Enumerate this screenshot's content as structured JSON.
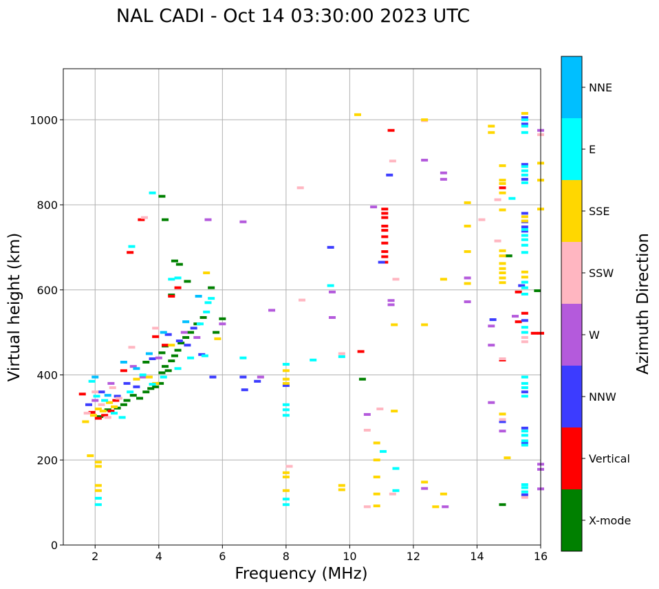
{
  "chart_data": {
    "type": "scatter",
    "title": "NAL CADI - Oct 14 03:30:00 2023 UTC",
    "xlabel": "Frequency (MHz)",
    "ylabel": "Virtual height (km)",
    "xlim": [
      1,
      16
    ],
    "ylim": [
      0,
      1120
    ],
    "xticks": [
      2,
      4,
      6,
      8,
      10,
      12,
      14,
      16
    ],
    "yticks": [
      0,
      200,
      400,
      600,
      800,
      1000
    ],
    "grid": true,
    "colorbar": {
      "label": "Azimuth Direction",
      "categories": [
        "X-mode",
        "Vertical",
        "NNW",
        "W",
        "SSW",
        "SSE",
        "E",
        "NNE"
      ],
      "colors": [
        "#008000",
        "#ff0000",
        "#3c3cff",
        "#b45adc",
        "#ffb6c1",
        "#ffd700",
        "#00ffff",
        "#00bfff"
      ]
    },
    "series": [
      {
        "name": "X-mode",
        "points": [
          [
            2.15,
            302
          ],
          [
            2.4,
            318
          ],
          [
            2.7,
            322
          ],
          [
            2.9,
            330
          ],
          [
            3.0,
            340
          ],
          [
            3.2,
            352
          ],
          [
            3.4,
            345
          ],
          [
            3.6,
            360
          ],
          [
            3.75,
            368
          ],
          [
            3.9,
            372
          ],
          [
            4.05,
            380
          ],
          [
            4.1,
            405
          ],
          [
            4.2,
            420
          ],
          [
            4.3,
            410
          ],
          [
            4.4,
            433
          ],
          [
            4.5,
            445
          ],
          [
            4.6,
            458
          ],
          [
            4.7,
            475
          ],
          [
            4.85,
            488
          ],
          [
            5.0,
            500
          ],
          [
            5.2,
            520
          ],
          [
            5.4,
            535
          ],
          [
            4.1,
            452
          ],
          [
            4.2,
            468
          ],
          [
            3.6,
            430
          ],
          [
            4.4,
            588
          ],
          [
            4.2,
            765
          ],
          [
            4.1,
            820
          ],
          [
            4.5,
            668
          ],
          [
            4.65,
            660
          ],
          [
            5.65,
            605
          ],
          [
            6.0,
            532
          ],
          [
            5.8,
            500
          ],
          [
            10.4,
            390
          ],
          [
            14.8,
            95
          ],
          [
            15.0,
            680
          ],
          [
            15.9,
            598
          ],
          [
            4.9,
            620
          ]
        ]
      },
      {
        "name": "Vertical",
        "points": [
          [
            1.6,
            355
          ],
          [
            1.9,
            312
          ],
          [
            2.1,
            298
          ],
          [
            2.3,
            305
          ],
          [
            2.5,
            315
          ],
          [
            2.65,
            340
          ],
          [
            2.9,
            410
          ],
          [
            3.1,
            688
          ],
          [
            3.45,
            765
          ],
          [
            3.9,
            490
          ],
          [
            4.2,
            470
          ],
          [
            4.4,
            585
          ],
          [
            4.6,
            605
          ],
          [
            10.35,
            455
          ],
          [
            11.1,
            790
          ],
          [
            11.1,
            780
          ],
          [
            11.1,
            770
          ],
          [
            11.1,
            750
          ],
          [
            11.1,
            740
          ],
          [
            11.1,
            725
          ],
          [
            11.1,
            710
          ],
          [
            11.1,
            690
          ],
          [
            11.1,
            678
          ],
          [
            11.1,
            665
          ],
          [
            11.3,
            975
          ],
          [
            14.8,
            840
          ],
          [
            14.8,
            435
          ],
          [
            15.3,
            525
          ],
          [
            15.5,
            545
          ],
          [
            15.8,
            498
          ],
          [
            16.0,
            498
          ],
          [
            15.3,
            595
          ]
        ]
      },
      {
        "name": "NNW",
        "points": [
          [
            1.8,
            330
          ],
          [
            2.2,
            360
          ],
          [
            2.7,
            350
          ],
          [
            3.0,
            380
          ],
          [
            3.3,
            372
          ],
          [
            3.8,
            438
          ],
          [
            4.3,
            495
          ],
          [
            4.65,
            480
          ],
          [
            4.9,
            470
          ],
          [
            5.1,
            510
          ],
          [
            5.35,
            448
          ],
          [
            5.7,
            395
          ],
          [
            6.65,
            395
          ],
          [
            6.7,
            365
          ],
          [
            7.1,
            385
          ],
          [
            8.0,
            375
          ],
          [
            9.4,
            700
          ],
          [
            11.0,
            665
          ],
          [
            11.25,
            870
          ],
          [
            14.5,
            530
          ],
          [
            14.8,
            290
          ],
          [
            15.5,
            1005
          ],
          [
            15.5,
            990
          ],
          [
            15.5,
            895
          ],
          [
            15.5,
            860
          ],
          [
            15.5,
            780
          ],
          [
            15.5,
            760
          ],
          [
            15.5,
            748
          ],
          [
            15.5,
            738
          ],
          [
            15.5,
            528
          ],
          [
            15.5,
            360
          ],
          [
            15.5,
            275
          ],
          [
            15.5,
            240
          ],
          [
            15.5,
            118
          ],
          [
            15.4,
            610
          ]
        ]
      },
      {
        "name": "W",
        "points": [
          [
            2.0,
            340
          ],
          [
            2.5,
            380
          ],
          [
            3.2,
            420
          ],
          [
            3.5,
            395
          ],
          [
            4.0,
            440
          ],
          [
            4.8,
            500
          ],
          [
            5.2,
            488
          ],
          [
            5.55,
            765
          ],
          [
            6.0,
            520
          ],
          [
            6.65,
            760
          ],
          [
            7.2,
            395
          ],
          [
            7.55,
            552
          ],
          [
            9.45,
            535
          ],
          [
            9.45,
            595
          ],
          [
            10.55,
            307
          ],
          [
            10.75,
            795
          ],
          [
            11.3,
            565
          ],
          [
            11.3,
            575
          ],
          [
            12.35,
            905
          ],
          [
            12.35,
            133
          ],
          [
            12.95,
            875
          ],
          [
            12.95,
            860
          ],
          [
            13.0,
            90
          ],
          [
            13.7,
            572
          ],
          [
            13.7,
            628
          ],
          [
            14.45,
            470
          ],
          [
            14.45,
            515
          ],
          [
            14.45,
            335
          ],
          [
            14.8,
            268
          ],
          [
            15.2,
            538
          ],
          [
            16.0,
            975
          ],
          [
            16.0,
            190
          ],
          [
            16.0,
            178
          ],
          [
            16.0,
            132
          ]
        ]
      },
      {
        "name": "SSW",
        "points": [
          [
            1.75,
            310
          ],
          [
            2.0,
            360
          ],
          [
            2.2,
            330
          ],
          [
            2.4,
            300
          ],
          [
            2.55,
            370
          ],
          [
            2.75,
            345
          ],
          [
            3.15,
            465
          ],
          [
            3.55,
            770
          ],
          [
            3.9,
            510
          ],
          [
            8.1,
            185
          ],
          [
            8.45,
            840
          ],
          [
            8.5,
            576
          ],
          [
            9.75,
            450
          ],
          [
            10.55,
            270
          ],
          [
            10.55,
            90
          ],
          [
            10.95,
            320
          ],
          [
            11.35,
            903
          ],
          [
            11.45,
            625
          ],
          [
            11.35,
            120
          ],
          [
            12.35,
            998
          ],
          [
            14.15,
            765
          ],
          [
            14.65,
            812
          ],
          [
            14.65,
            715
          ],
          [
            14.8,
            438
          ],
          [
            14.8,
            295
          ],
          [
            15.5,
            488
          ],
          [
            15.5,
            478
          ],
          [
            15.5,
            112
          ],
          [
            16.0,
            965
          ]
        ]
      },
      {
        "name": "SSE",
        "points": [
          [
            1.7,
            290
          ],
          [
            1.95,
            305
          ],
          [
            2.1,
            320
          ],
          [
            2.25,
            315
          ],
          [
            2.45,
            335
          ],
          [
            2.6,
            325
          ],
          [
            3.3,
            390
          ],
          [
            3.7,
            395
          ],
          [
            3.9,
            380
          ],
          [
            4.4,
            470
          ],
          [
            5.5,
            640
          ],
          [
            5.85,
            485
          ],
          [
            1.85,
            210
          ],
          [
            2.1,
            195
          ],
          [
            2.1,
            185
          ],
          [
            2.1,
            140
          ],
          [
            2.1,
            128
          ],
          [
            8.0,
            410
          ],
          [
            8.0,
            390
          ],
          [
            8.0,
            380
          ],
          [
            8.0,
            170
          ],
          [
            8.0,
            160
          ],
          [
            8.0,
            128
          ],
          [
            9.75,
            140
          ],
          [
            9.75,
            130
          ],
          [
            10.25,
            1012
          ],
          [
            10.85,
            240
          ],
          [
            10.85,
            200
          ],
          [
            10.85,
            160
          ],
          [
            10.85,
            120
          ],
          [
            10.85,
            92
          ],
          [
            11.4,
            518
          ],
          [
            11.4,
            315
          ],
          [
            12.35,
            1000
          ],
          [
            12.35,
            518
          ],
          [
            12.35,
            148
          ],
          [
            12.7,
            90
          ],
          [
            12.95,
            625
          ],
          [
            12.95,
            120
          ],
          [
            13.7,
            805
          ],
          [
            13.7,
            750
          ],
          [
            13.7,
            690
          ],
          [
            13.7,
            615
          ],
          [
            14.45,
            985
          ],
          [
            14.45,
            970
          ],
          [
            14.8,
            892
          ],
          [
            14.8,
            858
          ],
          [
            14.8,
            850
          ],
          [
            14.8,
            828
          ],
          [
            14.8,
            788
          ],
          [
            14.8,
            692
          ],
          [
            14.8,
            680
          ],
          [
            14.8,
            662
          ],
          [
            14.8,
            650
          ],
          [
            14.8,
            640
          ],
          [
            14.8,
            628
          ],
          [
            14.8,
            617
          ],
          [
            14.8,
            308
          ],
          [
            14.95,
            205
          ],
          [
            15.5,
            1015
          ],
          [
            15.5,
            772
          ],
          [
            15.5,
            762
          ],
          [
            15.5,
            642
          ],
          [
            15.5,
            630
          ],
          [
            16.0,
            898
          ],
          [
            16.0,
            858
          ],
          [
            16.0,
            790
          ]
        ]
      },
      {
        "name": "E",
        "points": [
          [
            1.9,
            385
          ],
          [
            2.05,
            350
          ],
          [
            2.3,
            340
          ],
          [
            2.6,
            310
          ],
          [
            2.85,
            300
          ],
          [
            3.1,
            360
          ],
          [
            3.5,
            400
          ],
          [
            3.8,
            378
          ],
          [
            4.15,
            395
          ],
          [
            4.6,
            415
          ],
          [
            5.0,
            440
          ],
          [
            5.3,
            520
          ],
          [
            5.55,
            570
          ],
          [
            5.65,
            580
          ],
          [
            5.5,
            548
          ],
          [
            3.15,
            702
          ],
          [
            3.8,
            828
          ],
          [
            4.4,
            625
          ],
          [
            4.6,
            628
          ],
          [
            5.45,
            445
          ],
          [
            6.65,
            440
          ],
          [
            8.0,
            425
          ],
          [
            8.0,
            330
          ],
          [
            8.0,
            318
          ],
          [
            8.0,
            305
          ],
          [
            8.0,
            108
          ],
          [
            8.0,
            95
          ],
          [
            8.85,
            435
          ],
          [
            9.4,
            610
          ],
          [
            9.75,
            443
          ],
          [
            11.05,
            220
          ],
          [
            11.45,
            180
          ],
          [
            11.45,
            128
          ],
          [
            2.1,
            110
          ],
          [
            2.1,
            95
          ],
          [
            15.1,
            815
          ],
          [
            15.5,
            1000
          ],
          [
            15.5,
            985
          ],
          [
            15.5,
            970
          ],
          [
            15.5,
            890
          ],
          [
            15.5,
            880
          ],
          [
            15.5,
            870
          ],
          [
            15.5,
            852
          ],
          [
            15.5,
            742
          ],
          [
            15.5,
            728
          ],
          [
            15.5,
            718
          ],
          [
            15.5,
            705
          ],
          [
            15.5,
            688
          ],
          [
            15.5,
            618
          ],
          [
            15.5,
            605
          ],
          [
            15.5,
            590
          ],
          [
            15.5,
            512
          ],
          [
            15.5,
            500
          ],
          [
            15.5,
            395
          ],
          [
            15.5,
            380
          ],
          [
            15.5,
            370
          ],
          [
            15.5,
            350
          ],
          [
            15.5,
            268
          ],
          [
            15.5,
            258
          ],
          [
            15.5,
            245
          ],
          [
            15.5,
            235
          ],
          [
            15.5,
            142
          ],
          [
            15.5,
            135
          ],
          [
            15.5,
            125
          ]
        ]
      },
      {
        "name": "NNE",
        "points": [
          [
            2.0,
            395
          ],
          [
            2.4,
            352
          ],
          [
            2.9,
            430
          ],
          [
            3.3,
            415
          ],
          [
            3.7,
            450
          ],
          [
            4.15,
            500
          ],
          [
            4.85,
            525
          ],
          [
            5.25,
            585
          ]
        ]
      }
    ]
  }
}
